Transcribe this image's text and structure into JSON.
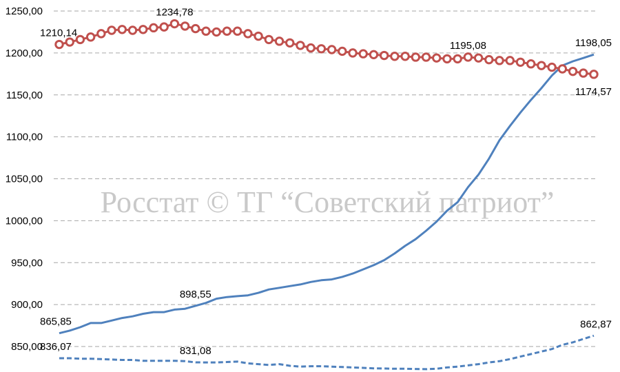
{
  "chart_data": {
    "type": "line",
    "ylim": [
      835,
      1250
    ],
    "yticks": [
      "1250,00",
      "1200,00",
      "1150,00",
      "1100,00",
      "1050,00",
      "1000,00",
      "950,00",
      "900,00",
      "850,00"
    ],
    "ytick_values": [
      1250,
      1200,
      1150,
      1100,
      1050,
      1000,
      950,
      900,
      850
    ],
    "grid": true,
    "x_count": 52,
    "series": [
      {
        "style": "red-markers",
        "color": "#c0504d",
        "marker_fill": "#ffffff",
        "values": [
          1210.14,
          1213,
          1216,
          1219,
          1223,
          1227,
          1228,
          1227,
          1228,
          1230,
          1231,
          1234.78,
          1232,
          1229,
          1226,
          1225,
          1226,
          1226,
          1223,
          1220,
          1216,
          1214,
          1212,
          1209,
          1206,
          1205,
          1204,
          1202,
          1200,
          1199,
          1198,
          1197,
          1196,
          1196,
          1195,
          1195,
          1194,
          1193,
          1193,
          1195.08,
          1194,
          1192,
          1191,
          1191,
          1189,
          1187,
          1185,
          1183,
          1181,
          1178,
          1176,
          1174.57
        ]
      },
      {
        "style": "solid",
        "color": "#4f81bd",
        "values": [
          865.85,
          869,
          873,
          878,
          878,
          881,
          884,
          886,
          889,
          891,
          891,
          894,
          895,
          898.55,
          902,
          907,
          909,
          910,
          911,
          914,
          918,
          920,
          922,
          924,
          927,
          929,
          930,
          933,
          937,
          942,
          947,
          953,
          961,
          970,
          978,
          988,
          999,
          1012,
          1022,
          1040,
          1055,
          1074,
          1096,
          1113,
          1129,
          1144,
          1158,
          1173,
          1185,
          1190,
          1194,
          1198.05
        ]
      },
      {
        "style": "dashed",
        "color": "#4f81bd",
        "values": [
          836.07,
          836,
          835.5,
          835.5,
          835,
          834.5,
          834,
          834,
          833,
          833,
          833,
          833,
          832.5,
          831.08,
          831,
          831,
          831.5,
          832,
          830,
          829,
          828,
          829,
          827,
          826,
          826.5,
          826.5,
          826,
          825.5,
          825,
          824.5,
          824,
          823.8,
          823.5,
          823.5,
          823.2,
          823,
          823.5,
          825,
          826,
          827.5,
          829,
          831,
          832.5,
          835,
          838,
          841,
          844,
          847,
          852,
          855,
          859,
          862.87
        ]
      }
    ],
    "data_labels": [
      {
        "series": 0,
        "index": 0,
        "text": "1210,14",
        "pos": "above"
      },
      {
        "series": 0,
        "index": 11,
        "text": "1234,78",
        "pos": "above"
      },
      {
        "series": 0,
        "index": 39,
        "text": "1195,08",
        "pos": "above"
      },
      {
        "series": 0,
        "index": 51,
        "text": "1174,57",
        "pos": "below"
      },
      {
        "series": 1,
        "index": 51,
        "text": "1198,05",
        "pos": "above"
      },
      {
        "series": 1,
        "index": 0,
        "text": "865,85",
        "pos": "above"
      },
      {
        "series": 1,
        "index": 13,
        "text": "898,55",
        "pos": "above"
      },
      {
        "series": 2,
        "index": 0,
        "text": "836,07",
        "pos": "above"
      },
      {
        "series": 2,
        "index": 13,
        "text": "831,08",
        "pos": "above"
      },
      {
        "series": 2,
        "index": 51,
        "text": "862,87",
        "pos": "above"
      }
    ]
  },
  "watermark": "Росстат © ТГ “Советский патриот”"
}
